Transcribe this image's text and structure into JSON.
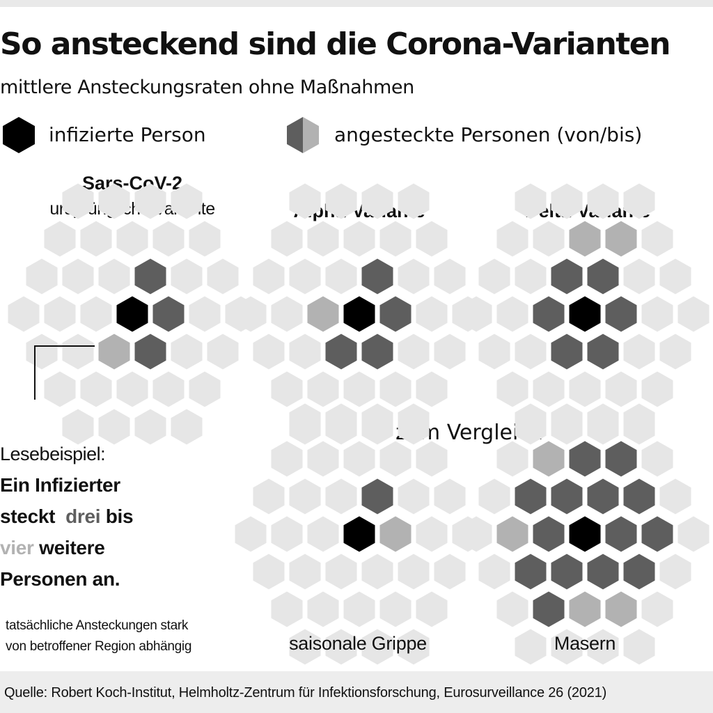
{
  "title": "So ansteckend sind die Corona-Varianten",
  "subtitle": "mittlere Ansteckungsraten ohne Maßnahmen",
  "legend": {
    "infected_label": "infizierte Person",
    "infected_color": "#000000",
    "contacts_label": "angesteckte Personen (von/bis)",
    "contacts_from_color": "#5e5e5e",
    "contacts_to_color": "#b2b2b2",
    "empty_color": "#e6e6e6"
  },
  "grids": {
    "sarscov2": {
      "title": "Sars-CoV-2",
      "subtitle": "ursprüngliche Variante",
      "infected_from": 3,
      "infected_to": 4
    },
    "alpha": {
      "title": "Alpha-Variante",
      "infected_from": 4,
      "infected_to": 5
    },
    "delta": {
      "title": "Delta-Variante",
      "infected_from": 6,
      "infected_to": 8
    },
    "grippe": {
      "label": "saisonale Grippe",
      "infected_from": 1,
      "infected_to": 2
    },
    "masern": {
      "label": "Masern",
      "infected_from": 16,
      "infected_to": 20
    }
  },
  "comparison_heading": "zum Vergleich",
  "reading_example": {
    "label": "Lesebeispiel:",
    "line1": "Ein Infizierter",
    "line2_pre": "steckt",
    "line2_dark": "drei",
    "line2_post": "bis",
    "line3_light": "vier",
    "line3_post": "weitere",
    "line4": "Personen an."
  },
  "footnote": {
    "line1": "tatsächliche Ansteckungen stark",
    "line2": "von betroffener Region abhängig"
  },
  "source": "Quelle: Robert Koch-Institut, Helmholtz-Zentrum für Infektionsforschung, Eurosurveillance 26 (2021)",
  "graphic_id": "dpa 102703"
}
